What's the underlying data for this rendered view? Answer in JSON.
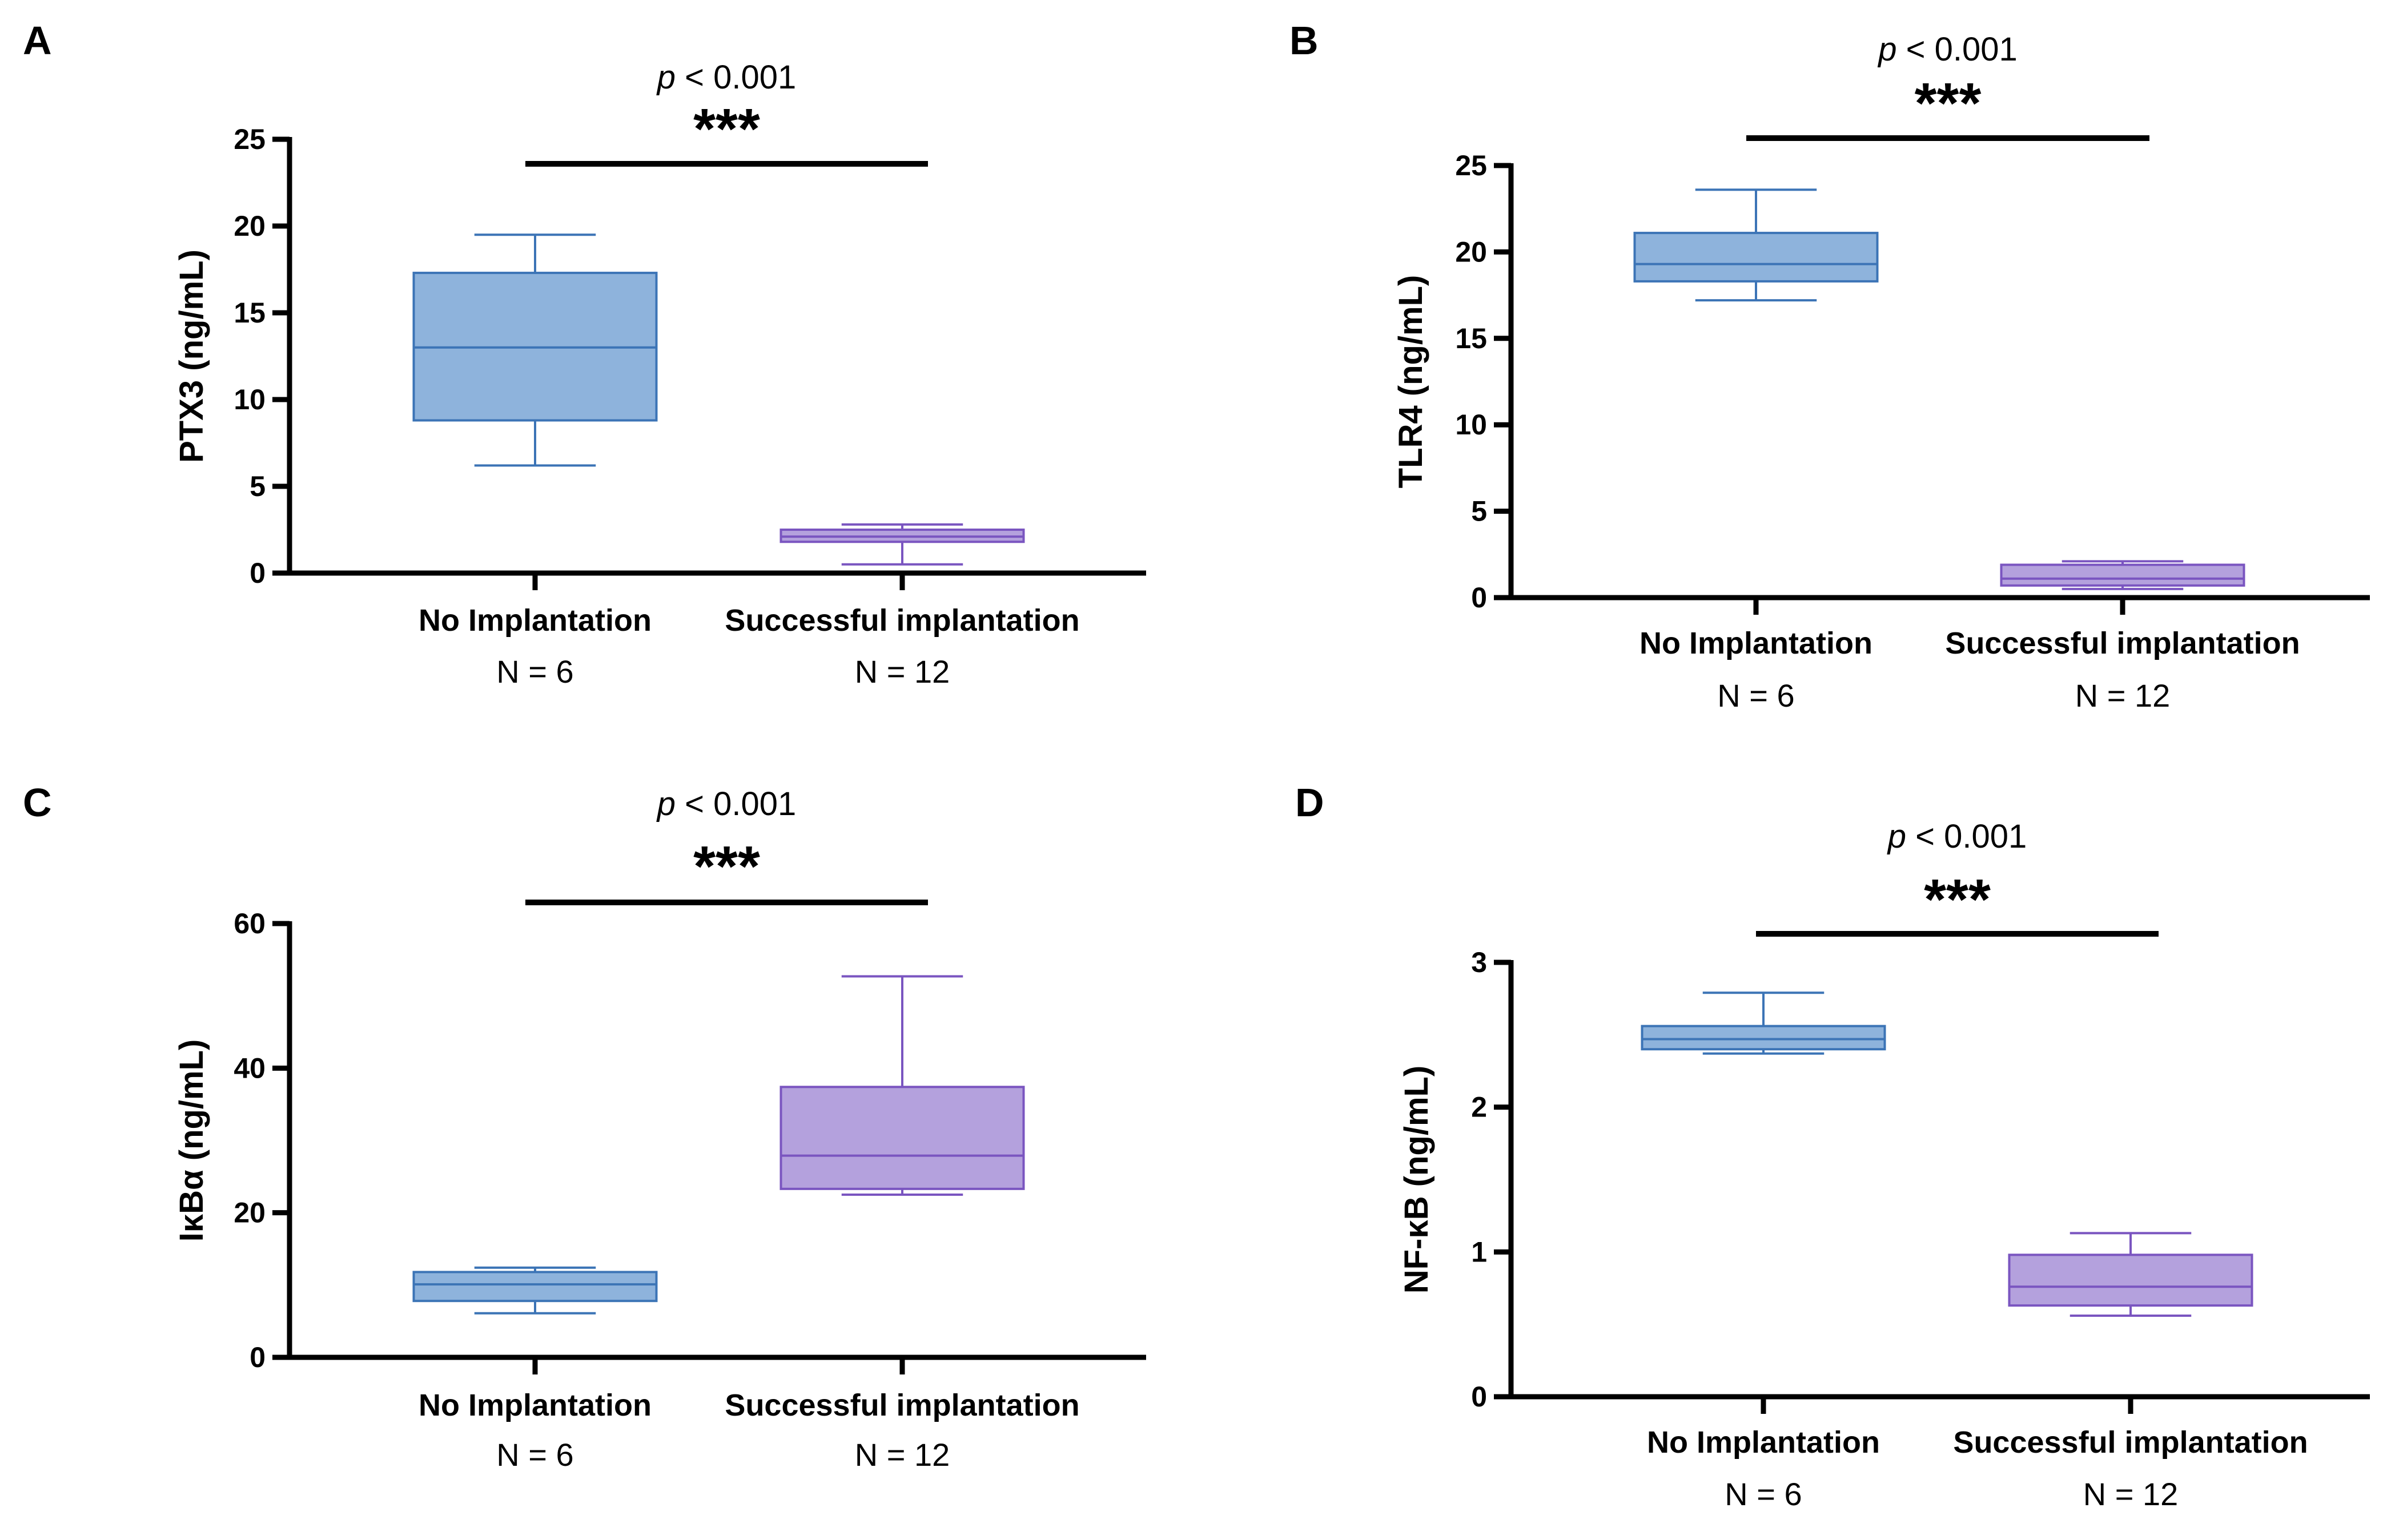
{
  "chart_data": [
    {
      "panel": "A",
      "type": "box",
      "ylabel": "PTX3 (ng/mL)",
      "ylim": [
        0,
        25
      ],
      "yticks": [
        0,
        5,
        10,
        15,
        20,
        25
      ],
      "p_text_italic": "p",
      "p_text_rest": " < 0.001",
      "significance": "***",
      "categories": [
        "No Implantation",
        "Successful implantation"
      ],
      "n_labels": [
        "N = 6",
        "N = 12"
      ],
      "boxes": [
        {
          "group": "No Implantation",
          "min": 6.2,
          "q1": 8.8,
          "median": 13.0,
          "q3": 17.3,
          "max": 19.5,
          "color": "#8eb3dc",
          "edge": "#3c74b6"
        },
        {
          "group": "Successful implantation",
          "min": 0.5,
          "q1": 1.8,
          "median": 2.1,
          "q3": 2.5,
          "max": 2.8,
          "color": "#b4a1dd",
          "edge": "#7a55c0"
        }
      ]
    },
    {
      "panel": "B",
      "type": "box",
      "ylabel": "TLR4 (ng/mL)",
      "ylim": [
        0,
        25
      ],
      "yticks": [
        0,
        5,
        10,
        15,
        20,
        25
      ],
      "p_text_italic": "p",
      "p_text_rest": " < 0.001",
      "significance": "***",
      "categories": [
        "No Implantation",
        "Successful implantation"
      ],
      "n_labels": [
        "N = 6",
        "N = 12"
      ],
      "boxes": [
        {
          "group": "No Implantation",
          "min": 17.2,
          "q1": 18.3,
          "median": 19.3,
          "q3": 21.1,
          "max": 23.6,
          "color": "#8eb3dc",
          "edge": "#3c74b6"
        },
        {
          "group": "Successful implantation",
          "min": 0.5,
          "q1": 0.7,
          "median": 1.1,
          "q3": 1.9,
          "max": 2.1,
          "color": "#b4a1dd",
          "edge": "#7a55c0"
        }
      ]
    },
    {
      "panel": "C",
      "type": "box",
      "ylabel": "IκBα (ng/mL)",
      "ylim": [
        0,
        60
      ],
      "yticks": [
        0,
        20,
        40,
        60
      ],
      "p_text_italic": "p",
      "p_text_rest": " < 0.001",
      "significance": "***",
      "categories": [
        "No Implantation",
        "Successful implantation"
      ],
      "n_labels": [
        "N = 6",
        "N = 12"
      ],
      "boxes": [
        {
          "group": "No Implantation",
          "min": 6.1,
          "q1": 7.8,
          "median": 10.1,
          "q3": 11.8,
          "max": 12.4,
          "color": "#8eb3dc",
          "edge": "#3c74b6"
        },
        {
          "group": "Successful implantation",
          "min": 22.5,
          "q1": 23.3,
          "median": 27.9,
          "q3": 37.4,
          "max": 52.7,
          "color": "#b4a1dd",
          "edge": "#7a55c0"
        }
      ]
    },
    {
      "panel": "D",
      "type": "box",
      "ylabel": "NF-κB (ng/mL)",
      "ylim": [
        0,
        3
      ],
      "yticks": [
        0,
        1,
        2,
        3
      ],
      "p_text_italic": "p",
      "p_text_rest": " < 0.001",
      "significance": "***",
      "categories": [
        "No Implantation",
        "Successful implantation"
      ],
      "n_labels": [
        "N = 6",
        "N = 12"
      ],
      "boxes": [
        {
          "group": "No Implantation",
          "min": 2.37,
          "q1": 2.4,
          "median": 2.47,
          "q3": 2.56,
          "max": 2.79,
          "color": "#8eb3dc",
          "edge": "#3c74b6"
        },
        {
          "group": "Successful implantation",
          "min": 0.56,
          "q1": 0.63,
          "median": 0.76,
          "q3": 0.98,
          "max": 1.13,
          "color": "#b4a1dd",
          "edge": "#7a55c0"
        }
      ]
    }
  ]
}
